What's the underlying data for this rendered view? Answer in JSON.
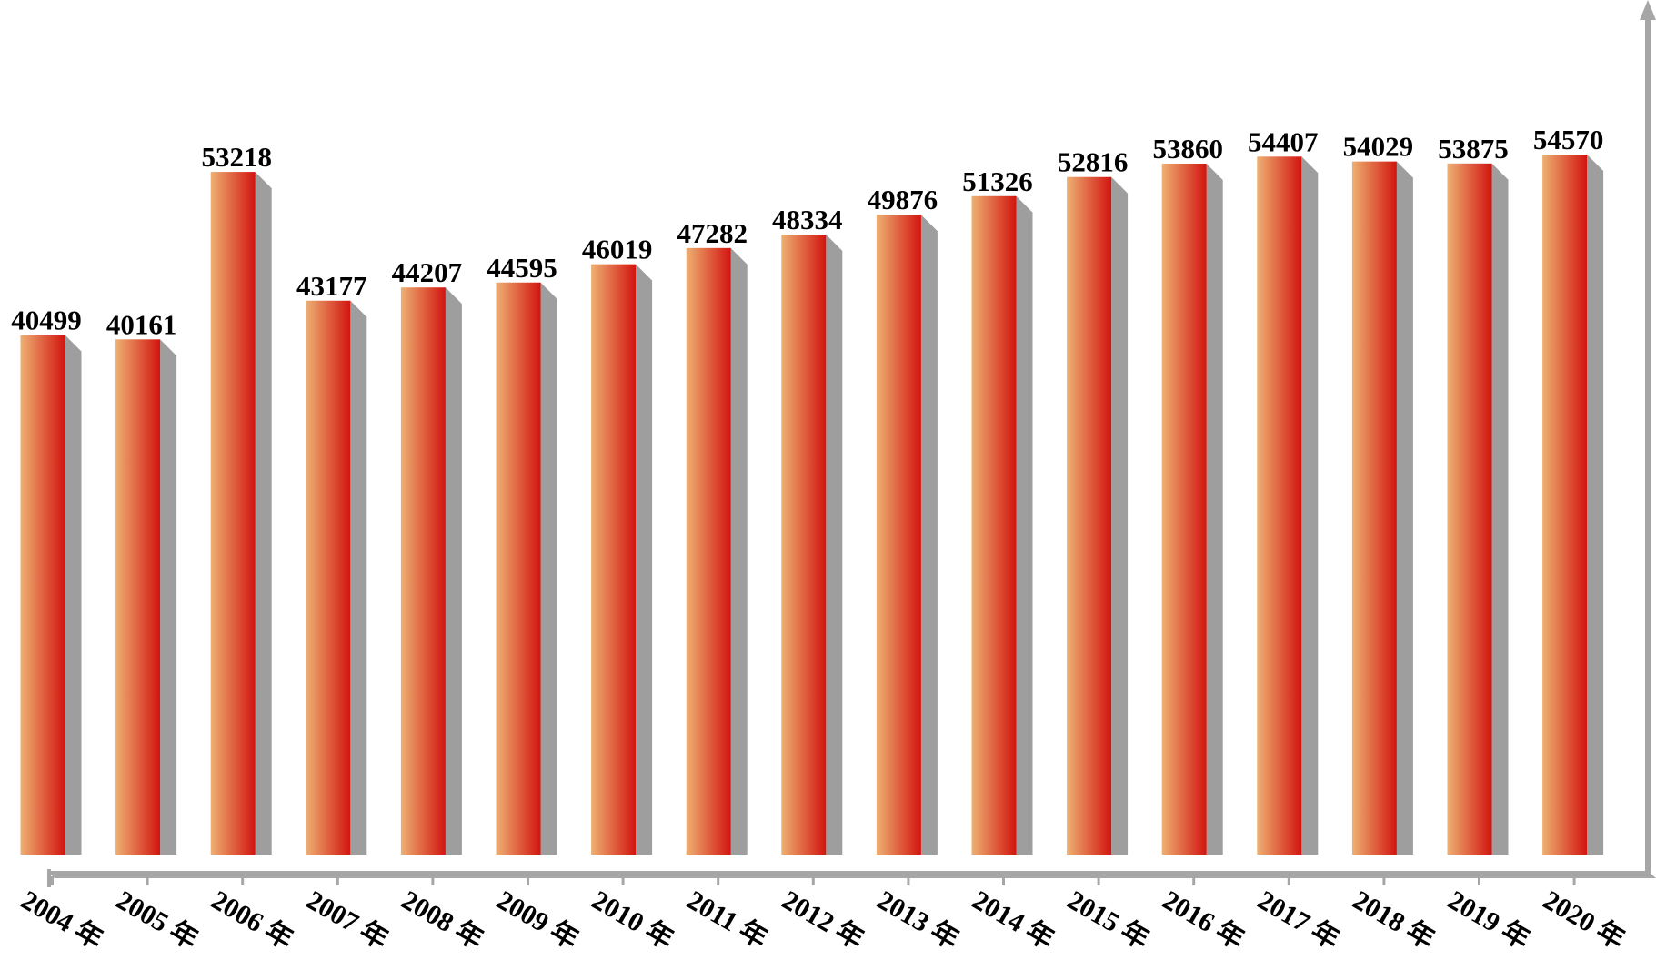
{
  "chart_data": {
    "type": "bar",
    "title": "",
    "xlabel": "",
    "ylabel": "",
    "categories": [
      "2004 年",
      "2005 年",
      "2006 年",
      "2007 年",
      "2008 年",
      "2009 年",
      "2010 年",
      "2011 年",
      "2012 年",
      "2013 年",
      "2014 年",
      "2015 年",
      "2016 年",
      "2017 年",
      "2018 年",
      "2019 年",
      "2020 年"
    ],
    "values": [
      40499,
      40161,
      53218,
      43177,
      44207,
      44595,
      46019,
      47282,
      48334,
      49876,
      51326,
      52816,
      53860,
      54407,
      54029,
      53875,
      54570
    ],
    "ylim": [
      0,
      62000
    ],
    "grid": false,
    "legend": "none",
    "data_labels": true,
    "colors": {
      "bar_light": "#eeb072",
      "bar_dark": "#d2140f",
      "shadow": "#9e9e9e",
      "axis": "#a6a6a6"
    }
  }
}
